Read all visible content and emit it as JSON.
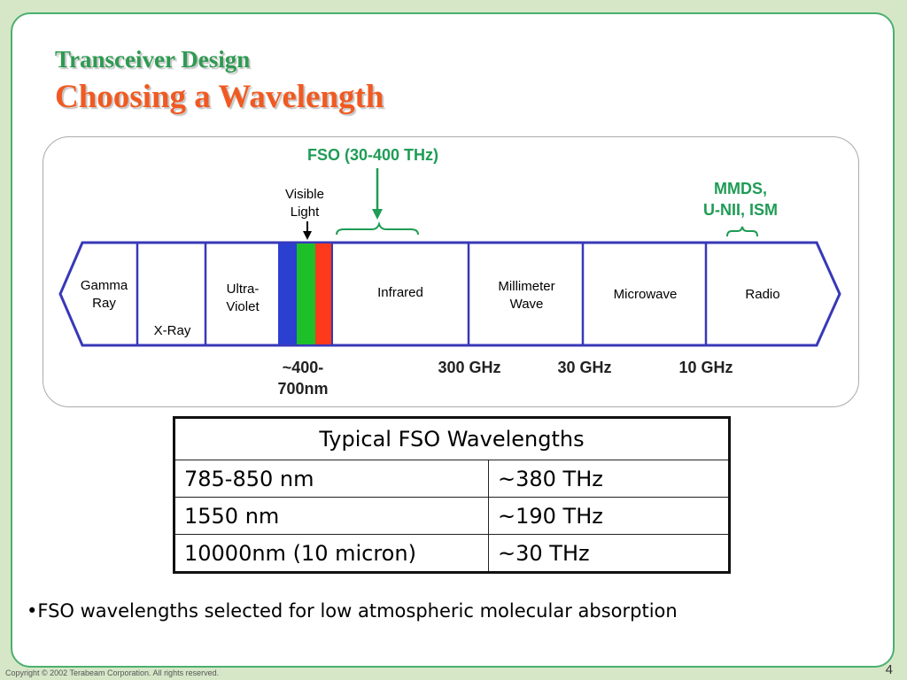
{
  "slide": {
    "title_line1": "Transceiver Design",
    "title_line2": "Choosing a Wavelength"
  },
  "diagram": {
    "fso_label": "FSO (30-400 THz)",
    "visible_light_line1": "Visible",
    "visible_light_line2": "Light",
    "mmds_line1": "MMDS,",
    "mmds_line2": "U-NII, ISM",
    "bands": {
      "gamma_line1": "Gamma",
      "gamma_line2": "Ray",
      "xray": "X-Ray",
      "uv_line1": "Ultra-",
      "uv_line2": "Violet",
      "infrared": "Infrared",
      "mm_line1": "Millimeter",
      "mm_line2": "Wave",
      "microwave": "Microwave",
      "radio": "Radio"
    },
    "visible_colors": [
      "#2b3fd0",
      "#1ec02a",
      "#ff3a1a"
    ],
    "frequencies": {
      "visible_range_line1": "~400-",
      "visible_range_line2": "700nm",
      "f300": "300 GHz",
      "f30": "30 GHz",
      "f10": "10 GHz"
    },
    "colors": {
      "outline": "#3838b8",
      "green": "#1f9c55"
    }
  },
  "table": {
    "header": "Typical FSO Wavelengths",
    "rows": [
      {
        "wavelength": "785-850 nm",
        "frequency": "~380 THz"
      },
      {
        "wavelength": "1550 nm",
        "frequency": "~190 THz"
      },
      {
        "wavelength": "10000nm (10 micron)",
        "frequency": "~30 THz"
      }
    ]
  },
  "bullet": "•FSO wavelengths selected for low atmospheric molecular absorption",
  "footer": {
    "copyright": "Copyright © 2002 Terabeam Corporation. All rights reserved.",
    "page_number": "4"
  }
}
